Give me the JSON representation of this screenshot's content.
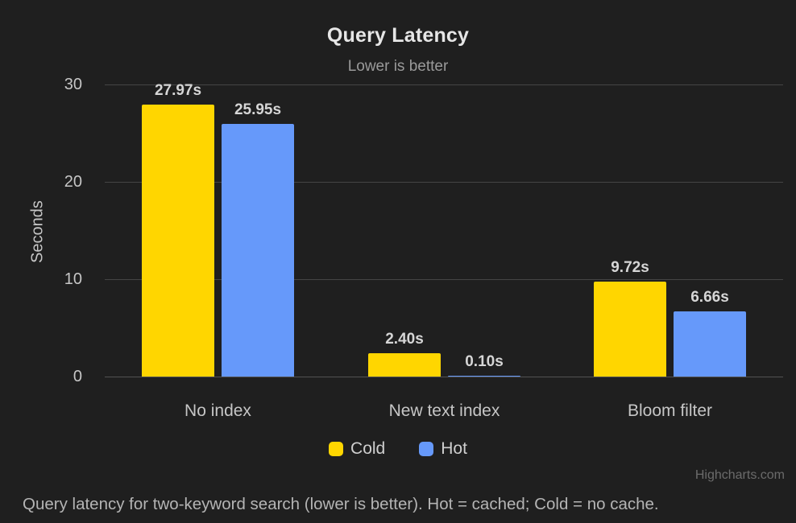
{
  "chart": {
    "title": "Query Latency",
    "subtitle": "Lower is better",
    "credits": "Highcharts.com",
    "caption": "Query latency for two-keyword search (lower is better). Hot = cached; Cold = no cache."
  },
  "chart_data": {
    "type": "bar",
    "title": "Query Latency",
    "subtitle": "Lower is better",
    "categories": [
      "No index",
      "New text index",
      "Bloom filter"
    ],
    "series": [
      {
        "name": "Cold",
        "color": "#FFD600",
        "values": [
          27.97,
          2.4,
          9.72
        ],
        "labels": [
          "27.97s",
          "2.40s",
          "9.72s"
        ]
      },
      {
        "name": "Hot",
        "color": "#6699FA",
        "values": [
          25.95,
          0.1,
          6.66
        ],
        "labels": [
          "25.95s",
          "0.10s",
          "6.66s"
        ]
      }
    ],
    "xlabel": "",
    "ylabel": "Seconds",
    "ylim": [
      0,
      30
    ],
    "yticks": [
      0,
      10,
      20,
      30
    ],
    "grid": true,
    "legend_position": "bottom"
  },
  "colors": {
    "background": "#1f1f1f",
    "gridline": "#454545",
    "axis_line": "#525252",
    "text_primary": "#e6e6e6",
    "text_secondary": "#9a9a9a",
    "tick_label": "#c6c6c6"
  }
}
